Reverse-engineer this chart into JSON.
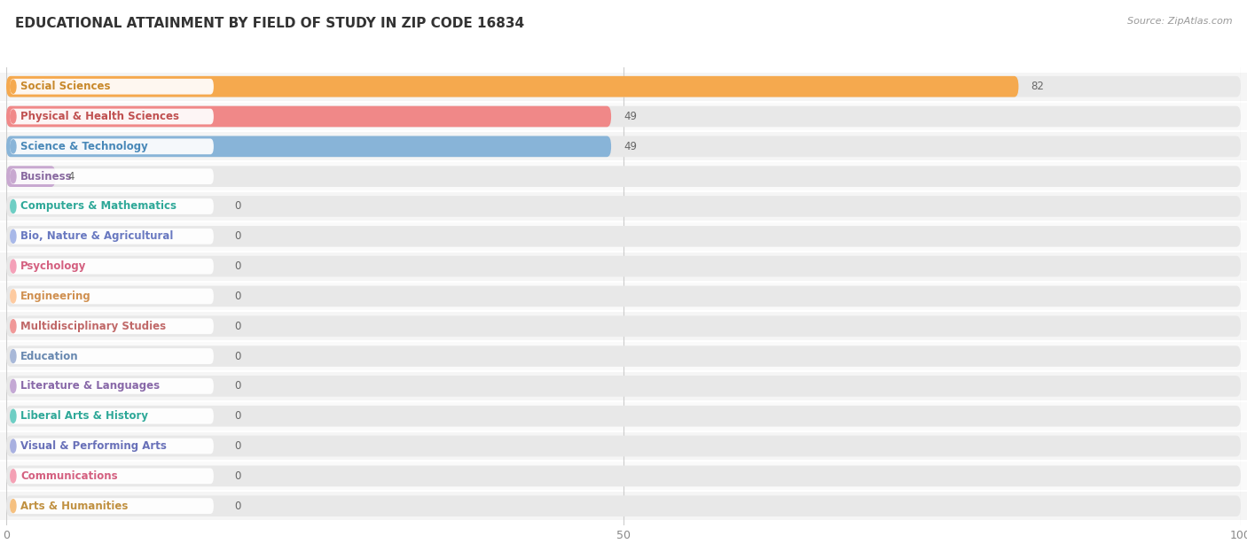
{
  "title": "EDUCATIONAL ATTAINMENT BY FIELD OF STUDY IN ZIP CODE 16834",
  "source": "Source: ZipAtlas.com",
  "categories": [
    "Social Sciences",
    "Physical & Health Sciences",
    "Science & Technology",
    "Business",
    "Computers & Mathematics",
    "Bio, Nature & Agricultural",
    "Psychology",
    "Engineering",
    "Multidisciplinary Studies",
    "Education",
    "Literature & Languages",
    "Liberal Arts & History",
    "Visual & Performing Arts",
    "Communications",
    "Arts & Humanities"
  ],
  "values": [
    82,
    49,
    49,
    4,
    0,
    0,
    0,
    0,
    0,
    0,
    0,
    0,
    0,
    0,
    0
  ],
  "bar_colors": [
    "#F5A94E",
    "#F08888",
    "#88B4D8",
    "#C8A8D0",
    "#6ECEC4",
    "#A8B8E8",
    "#F4A0B8",
    "#FDCAA0",
    "#F09898",
    "#A8B8D8",
    "#C4A8D4",
    "#6ECEC4",
    "#A8B0E0",
    "#F4A0B4",
    "#F5C080"
  ],
  "label_colors": [
    "#C8882A",
    "#C05050",
    "#4888B8",
    "#8868A0",
    "#2EA898",
    "#6878C0",
    "#D46080",
    "#D09050",
    "#C06868",
    "#6888B0",
    "#8868A8",
    "#2EA898",
    "#6870B8",
    "#D46080",
    "#C09040"
  ],
  "dot_colors": [
    "#F5A94E",
    "#F08888",
    "#88B4D8",
    "#C8A8D0",
    "#6ECEC4",
    "#A8B8E8",
    "#F4A0B8",
    "#FDCAA0",
    "#F09898",
    "#A8B8D8",
    "#C4A8D4",
    "#6ECEC4",
    "#A8B0E0",
    "#F4A0B4",
    "#F5C080"
  ],
  "row_bg_color": "#f0f0f0",
  "bar_bg_color": "#e8e8e8",
  "xlim_max": 100,
  "bg_color": "#ffffff",
  "title_fontsize": 11,
  "label_fontsize": 8.5,
  "value_fontsize": 8.5,
  "grid_color": "#cccccc"
}
